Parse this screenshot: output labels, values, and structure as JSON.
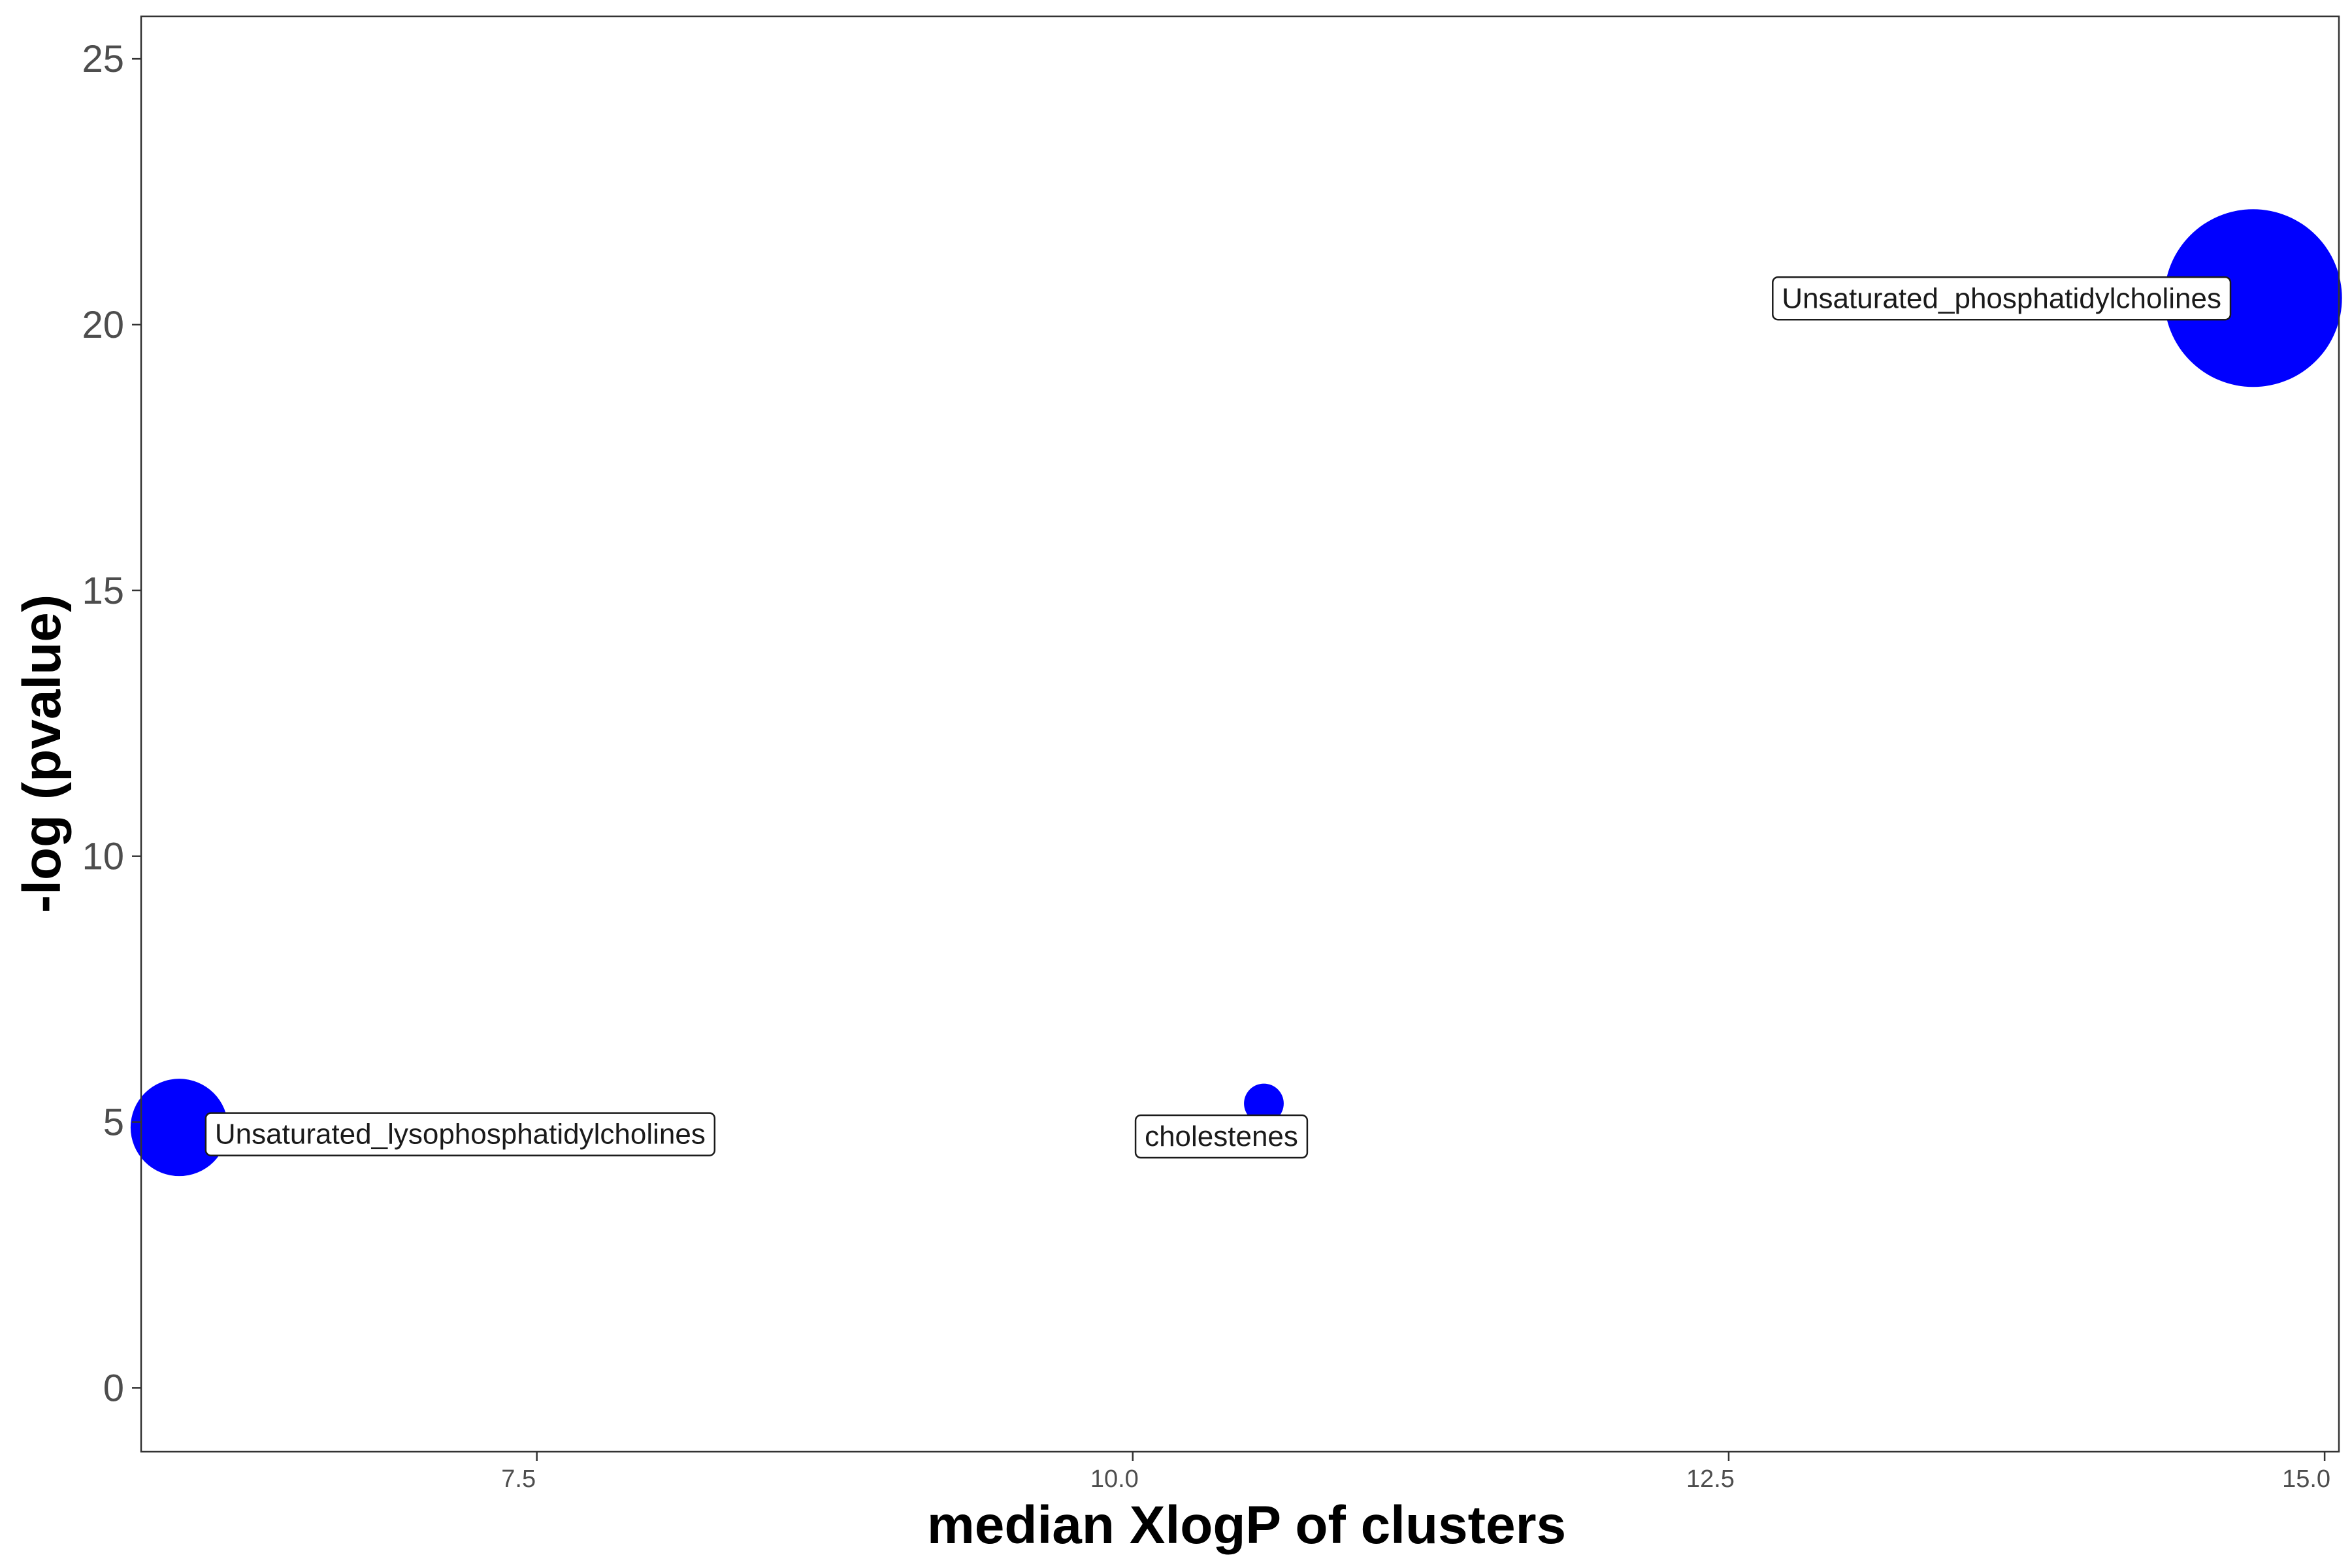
{
  "chart_data": {
    "type": "scatter",
    "title": "",
    "xlabel": "median XlogP of clusters",
    "ylabel": "-log (pvalue)",
    "xlim": [
      5.84,
      15.06
    ],
    "ylim": [
      -1.2,
      25.8
    ],
    "x_ticks": [
      7.5,
      10.0,
      12.5,
      15.0
    ],
    "x_tick_labels": [
      "7.5",
      "10.0",
      "12.5",
      "15.0"
    ],
    "y_ticks": [
      0,
      5,
      10,
      15,
      20,
      25
    ],
    "y_tick_labels": [
      "0",
      "5",
      "10",
      "15",
      "20",
      "25"
    ],
    "grid": false,
    "legend": "none",
    "point_color": "#0000ff",
    "points": [
      {
        "label": "Unsaturated_phosphatidylcholines",
        "x": 14.7,
        "y": 20.5,
        "size": 100
      },
      {
        "label": "Unsaturated_lysophosphatidylcholines",
        "x": 6.0,
        "y": 4.9,
        "size": 30
      },
      {
        "label": "cholestenes",
        "x": 10.55,
        "y": 5.35,
        "size": 5
      }
    ]
  }
}
